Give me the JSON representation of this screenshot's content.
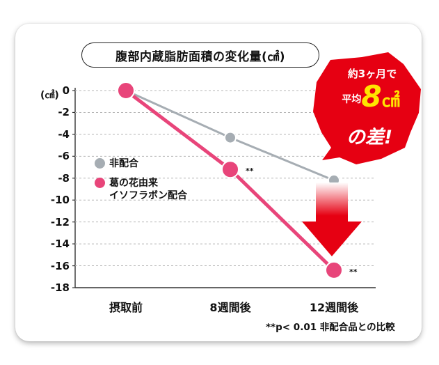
{
  "chart_data": {
    "type": "line",
    "title": "腹部内蔵脂肪面積の変化量(㎠)",
    "ylabel_unit": "(㎠)",
    "categories": [
      "摂取前",
      "8週間後",
      "12週間後"
    ],
    "ylim": [
      -18,
      0
    ],
    "yticks": [
      "0",
      "-2",
      "-4",
      "-6",
      "-8",
      "-10",
      "-12",
      "-14",
      "-16",
      "-18"
    ],
    "grid": "horizontal dashed",
    "legend_position": "left-middle",
    "series": [
      {
        "name": "非配合",
        "color": "#a6adb3",
        "values": [
          0,
          -4.3,
          -8.2
        ],
        "labels": [
          "",
          "",
          ""
        ]
      },
      {
        "name": "葛の花由来\nイソフラボン配合",
        "color": "#e8457a",
        "values": [
          0,
          -7.2,
          -16.4
        ],
        "labels": [
          "",
          "**",
          "**"
        ]
      }
    ],
    "footnote": "**p< 0.01 非配合品との比較",
    "callout": {
      "line1": "約3ヶ月で",
      "prefix": "平均",
      "value": "8",
      "unit": "㎠",
      "line3": "の差!",
      "color": "#e60012",
      "arrow_color": "#e60012"
    }
  }
}
